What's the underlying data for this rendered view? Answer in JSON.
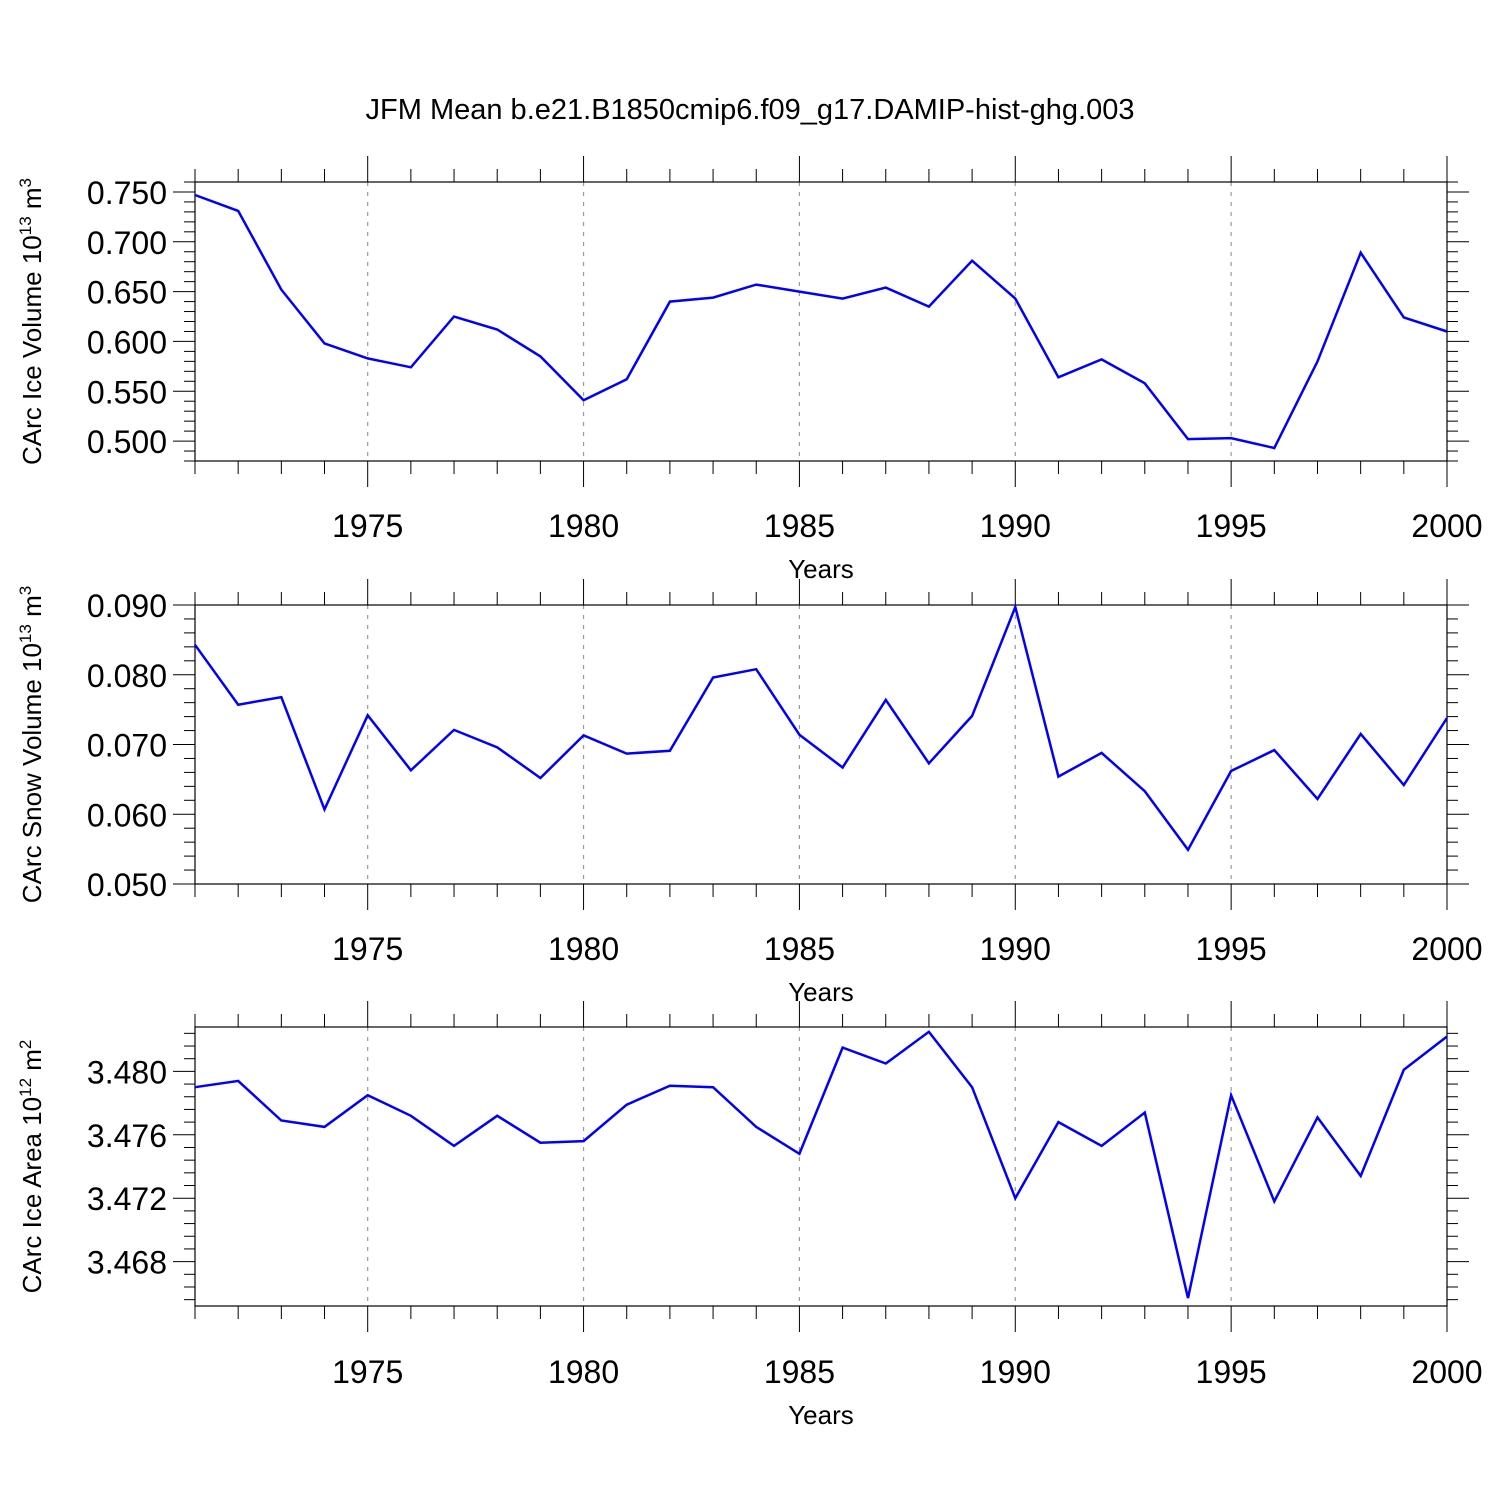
{
  "figure": {
    "title": "JFM Mean b.e21.B1850cmip6.f09_g17.DAMIP-hist-ghg.003",
    "line_color": "#0000ff"
  },
  "chart_data": [
    {
      "type": "line",
      "xlabel": "Years",
      "ylabel": {
        "prefix": "CArc Ice Volume 10",
        "exponent": "13",
        "unit": " m",
        "unit_exponent": "3"
      },
      "xlim": [
        1971,
        2000
      ],
      "ylim": [
        0.48,
        0.76
      ],
      "x_ticks": [
        1975,
        1980,
        1985,
        1990,
        1995,
        2000
      ],
      "y_ticks": [
        0.5,
        0.55,
        0.6,
        0.65,
        0.7,
        0.75
      ],
      "y_tick_labels": [
        "0.500",
        "0.550",
        "0.600",
        "0.650",
        "0.700",
        "0.750"
      ],
      "x_grid": "dashed vertical at major ticks",
      "x": [
        1971,
        1972,
        1973,
        1974,
        1975,
        1976,
        1977,
        1978,
        1979,
        1980,
        1981,
        1982,
        1983,
        1984,
        1985,
        1986,
        1987,
        1988,
        1989,
        1990,
        1991,
        1992,
        1993,
        1994,
        1995,
        1996,
        1997,
        1998,
        1999,
        2000
      ],
      "values": [
        0.747,
        0.731,
        0.652,
        0.598,
        0.583,
        0.574,
        0.625,
        0.612,
        0.585,
        0.541,
        0.562,
        0.64,
        0.644,
        0.657,
        0.65,
        0.643,
        0.654,
        0.635,
        0.681,
        0.643,
        0.564,
        0.582,
        0.558,
        0.502,
        0.503,
        0.493,
        0.58,
        0.689,
        0.624,
        0.61
      ]
    },
    {
      "type": "line",
      "xlabel": "Years",
      "ylabel": {
        "prefix": "CArc Snow Volume 10",
        "exponent": "13",
        "unit": " m",
        "unit_exponent": "3"
      },
      "xlim": [
        1971,
        2000
      ],
      "ylim": [
        0.05,
        0.09
      ],
      "x_ticks": [
        1975,
        1980,
        1985,
        1990,
        1995,
        2000
      ],
      "y_ticks": [
        0.05,
        0.06,
        0.07,
        0.08,
        0.09
      ],
      "y_tick_labels": [
        "0.050",
        "0.060",
        "0.070",
        "0.080",
        "0.090"
      ],
      "x_grid": "dashed vertical at major ticks",
      "x": [
        1971,
        1972,
        1973,
        1974,
        1975,
        1976,
        1977,
        1978,
        1979,
        1980,
        1981,
        1982,
        1983,
        1984,
        1985,
        1986,
        1987,
        1988,
        1989,
        1990,
        1991,
        1992,
        1993,
        1994,
        1995,
        1996,
        1997,
        1998,
        1999,
        2000
      ],
      "values": [
        0.0843,
        0.0757,
        0.0768,
        0.0607,
        0.0742,
        0.0663,
        0.0721,
        0.0696,
        0.0652,
        0.0713,
        0.0687,
        0.0691,
        0.0796,
        0.0808,
        0.0714,
        0.0667,
        0.0764,
        0.0673,
        0.0741,
        0.0897,
        0.0654,
        0.0688,
        0.0633,
        0.0549,
        0.0662,
        0.0692,
        0.0622,
        0.0715,
        0.0642,
        0.0738
      ]
    },
    {
      "type": "line",
      "xlabel": "Years",
      "ylabel": {
        "prefix": "CArc Ice Area 10",
        "exponent": "12",
        "unit": " m",
        "unit_exponent": "2"
      },
      "xlim": [
        1971,
        2000
      ],
      "ylim": [
        3.4652,
        3.4828
      ],
      "x_ticks": [
        1975,
        1980,
        1985,
        1990,
        1995,
        2000
      ],
      "y_ticks": [
        3.468,
        3.472,
        3.476,
        3.48
      ],
      "y_tick_labels": [
        "3.468",
        "3.472",
        "3.476",
        "3.480"
      ],
      "x_grid": "dashed vertical at major ticks",
      "x": [
        1971,
        1972,
        1973,
        1974,
        1975,
        1976,
        1977,
        1978,
        1979,
        1980,
        1981,
        1982,
        1983,
        1984,
        1985,
        1986,
        1987,
        1988,
        1989,
        1990,
        1991,
        1992,
        1993,
        1994,
        1995,
        1996,
        1997,
        1998,
        1999,
        2000
      ],
      "values": [
        3.479,
        3.4794,
        3.4769,
        3.4765,
        3.4785,
        3.4772,
        3.4753,
        3.4772,
        3.4755,
        3.4756,
        3.4779,
        3.4791,
        3.479,
        3.4765,
        3.4748,
        3.4815,
        3.4805,
        3.4825,
        3.479,
        3.472,
        3.4768,
        3.4753,
        3.4774,
        3.4657,
        3.4785,
        3.4718,
        3.4771,
        3.4734,
        3.4801,
        3.4822
      ]
    }
  ]
}
